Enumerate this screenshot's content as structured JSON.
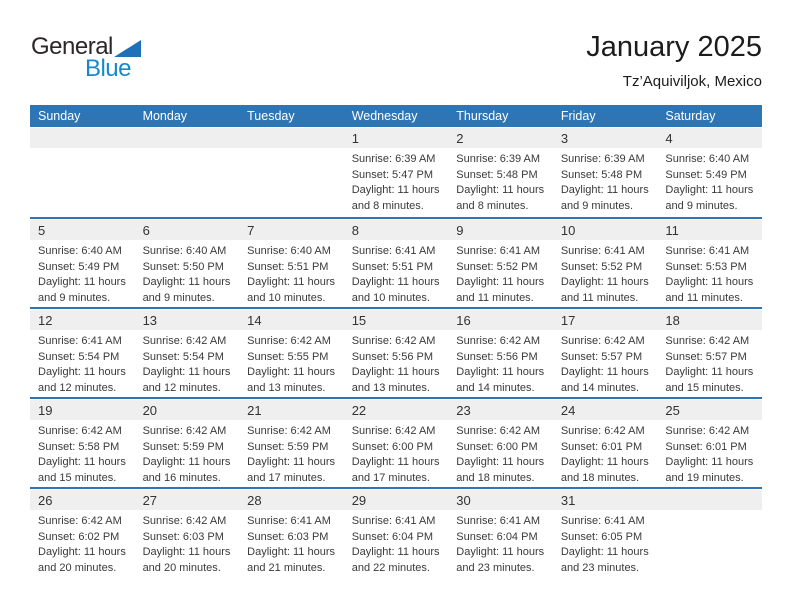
{
  "logo": {
    "general": "General",
    "blue": "Blue"
  },
  "header": {
    "title": "January 2025",
    "subtitle": "Tz’Aquiviljok, Mexico"
  },
  "colors": {
    "header_blue": "#2e75b5",
    "week_separator_blue": "#2e75b5",
    "day_band_gray": "#efefef",
    "logo_text_blue": "#1789cb",
    "logo_triangle_blue": "#1f70b6"
  },
  "calendar": {
    "weekdays": [
      "Sunday",
      "Monday",
      "Tuesday",
      "Wednesday",
      "Thursday",
      "Friday",
      "Saturday"
    ],
    "weeks": [
      {
        "cells": [
          null,
          null,
          null,
          {
            "day": "1",
            "sunrise": "Sunrise: 6:39 AM",
            "sunset": "Sunset: 5:47 PM",
            "daylight_line1": "Daylight: 11 hours",
            "daylight_line2": "and 8 minutes."
          },
          {
            "day": "2",
            "sunrise": "Sunrise: 6:39 AM",
            "sunset": "Sunset: 5:48 PM",
            "daylight_line1": "Daylight: 11 hours",
            "daylight_line2": "and 8 minutes."
          },
          {
            "day": "3",
            "sunrise": "Sunrise: 6:39 AM",
            "sunset": "Sunset: 5:48 PM",
            "daylight_line1": "Daylight: 11 hours",
            "daylight_line2": "and 9 minutes."
          },
          {
            "day": "4",
            "sunrise": "Sunrise: 6:40 AM",
            "sunset": "Sunset: 5:49 PM",
            "daylight_line1": "Daylight: 11 hours",
            "daylight_line2": "and 9 minutes."
          }
        ]
      },
      {
        "cells": [
          {
            "day": "5",
            "sunrise": "Sunrise: 6:40 AM",
            "sunset": "Sunset: 5:49 PM",
            "daylight_line1": "Daylight: 11 hours",
            "daylight_line2": "and 9 minutes."
          },
          {
            "day": "6",
            "sunrise": "Sunrise: 6:40 AM",
            "sunset": "Sunset: 5:50 PM",
            "daylight_line1": "Daylight: 11 hours",
            "daylight_line2": "and 9 minutes."
          },
          {
            "day": "7",
            "sunrise": "Sunrise: 6:40 AM",
            "sunset": "Sunset: 5:51 PM",
            "daylight_line1": "Daylight: 11 hours",
            "daylight_line2": "and 10 minutes."
          },
          {
            "day": "8",
            "sunrise": "Sunrise: 6:41 AM",
            "sunset": "Sunset: 5:51 PM",
            "daylight_line1": "Daylight: 11 hours",
            "daylight_line2": "and 10 minutes."
          },
          {
            "day": "9",
            "sunrise": "Sunrise: 6:41 AM",
            "sunset": "Sunset: 5:52 PM",
            "daylight_line1": "Daylight: 11 hours",
            "daylight_line2": "and 11 minutes."
          },
          {
            "day": "10",
            "sunrise": "Sunrise: 6:41 AM",
            "sunset": "Sunset: 5:52 PM",
            "daylight_line1": "Daylight: 11 hours",
            "daylight_line2": "and 11 minutes."
          },
          {
            "day": "11",
            "sunrise": "Sunrise: 6:41 AM",
            "sunset": "Sunset: 5:53 PM",
            "daylight_line1": "Daylight: 11 hours",
            "daylight_line2": "and 11 minutes."
          }
        ]
      },
      {
        "cells": [
          {
            "day": "12",
            "sunrise": "Sunrise: 6:41 AM",
            "sunset": "Sunset: 5:54 PM",
            "daylight_line1": "Daylight: 11 hours",
            "daylight_line2": "and 12 minutes."
          },
          {
            "day": "13",
            "sunrise": "Sunrise: 6:42 AM",
            "sunset": "Sunset: 5:54 PM",
            "daylight_line1": "Daylight: 11 hours",
            "daylight_line2": "and 12 minutes."
          },
          {
            "day": "14",
            "sunrise": "Sunrise: 6:42 AM",
            "sunset": "Sunset: 5:55 PM",
            "daylight_line1": "Daylight: 11 hours",
            "daylight_line2": "and 13 minutes."
          },
          {
            "day": "15",
            "sunrise": "Sunrise: 6:42 AM",
            "sunset": "Sunset: 5:56 PM",
            "daylight_line1": "Daylight: 11 hours",
            "daylight_line2": "and 13 minutes."
          },
          {
            "day": "16",
            "sunrise": "Sunrise: 6:42 AM",
            "sunset": "Sunset: 5:56 PM",
            "daylight_line1": "Daylight: 11 hours",
            "daylight_line2": "and 14 minutes."
          },
          {
            "day": "17",
            "sunrise": "Sunrise: 6:42 AM",
            "sunset": "Sunset: 5:57 PM",
            "daylight_line1": "Daylight: 11 hours",
            "daylight_line2": "and 14 minutes."
          },
          {
            "day": "18",
            "sunrise": "Sunrise: 6:42 AM",
            "sunset": "Sunset: 5:57 PM",
            "daylight_line1": "Daylight: 11 hours",
            "daylight_line2": "and 15 minutes."
          }
        ]
      },
      {
        "cells": [
          {
            "day": "19",
            "sunrise": "Sunrise: 6:42 AM",
            "sunset": "Sunset: 5:58 PM",
            "daylight_line1": "Daylight: 11 hours",
            "daylight_line2": "and 15 minutes."
          },
          {
            "day": "20",
            "sunrise": "Sunrise: 6:42 AM",
            "sunset": "Sunset: 5:59 PM",
            "daylight_line1": "Daylight: 11 hours",
            "daylight_line2": "and 16 minutes."
          },
          {
            "day": "21",
            "sunrise": "Sunrise: 6:42 AM",
            "sunset": "Sunset: 5:59 PM",
            "daylight_line1": "Daylight: 11 hours",
            "daylight_line2": "and 17 minutes."
          },
          {
            "day": "22",
            "sunrise": "Sunrise: 6:42 AM",
            "sunset": "Sunset: 6:00 PM",
            "daylight_line1": "Daylight: 11 hours",
            "daylight_line2": "and 17 minutes."
          },
          {
            "day": "23",
            "sunrise": "Sunrise: 6:42 AM",
            "sunset": "Sunset: 6:00 PM",
            "daylight_line1": "Daylight: 11 hours",
            "daylight_line2": "and 18 minutes."
          },
          {
            "day": "24",
            "sunrise": "Sunrise: 6:42 AM",
            "sunset": "Sunset: 6:01 PM",
            "daylight_line1": "Daylight: 11 hours",
            "daylight_line2": "and 18 minutes."
          },
          {
            "day": "25",
            "sunrise": "Sunrise: 6:42 AM",
            "sunset": "Sunset: 6:01 PM",
            "daylight_line1": "Daylight: 11 hours",
            "daylight_line2": "and 19 minutes."
          }
        ]
      },
      {
        "cells": [
          {
            "day": "26",
            "sunrise": "Sunrise: 6:42 AM",
            "sunset": "Sunset: 6:02 PM",
            "daylight_line1": "Daylight: 11 hours",
            "daylight_line2": "and 20 minutes."
          },
          {
            "day": "27",
            "sunrise": "Sunrise: 6:42 AM",
            "sunset": "Sunset: 6:03 PM",
            "daylight_line1": "Daylight: 11 hours",
            "daylight_line2": "and 20 minutes."
          },
          {
            "day": "28",
            "sunrise": "Sunrise: 6:41 AM",
            "sunset": "Sunset: 6:03 PM",
            "daylight_line1": "Daylight: 11 hours",
            "daylight_line2": "and 21 minutes."
          },
          {
            "day": "29",
            "sunrise": "Sunrise: 6:41 AM",
            "sunset": "Sunset: 6:04 PM",
            "daylight_line1": "Daylight: 11 hours",
            "daylight_line2": "and 22 minutes."
          },
          {
            "day": "30",
            "sunrise": "Sunrise: 6:41 AM",
            "sunset": "Sunset: 6:04 PM",
            "daylight_line1": "Daylight: 11 hours",
            "daylight_line2": "and 23 minutes."
          },
          {
            "day": "31",
            "sunrise": "Sunrise: 6:41 AM",
            "sunset": "Sunset: 6:05 PM",
            "daylight_line1": "Daylight: 11 hours",
            "daylight_line2": "and 23 minutes."
          },
          null
        ]
      }
    ]
  }
}
